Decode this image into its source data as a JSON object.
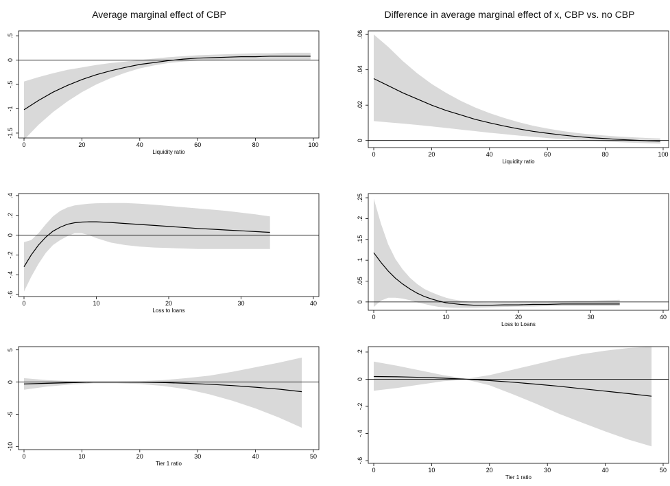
{
  "titles": {
    "left": "Average marginal effect of CBP",
    "right": "Difference in average marginal effect of x, CBP vs. no CBP"
  },
  "colors": {
    "band": "#d9d9d9",
    "line": "#000000",
    "frame": "#000000"
  },
  "chart_data": [
    {
      "type": "line",
      "column": "left",
      "xlabel": "Liquidity ratio",
      "xlim": [
        0,
        100
      ],
      "ylim": [
        -1.6,
        0.6
      ],
      "xticks": [
        0,
        20,
        40,
        60,
        80,
        100
      ],
      "xtick_labels": [
        "0",
        "20",
        "40",
        "60",
        "80",
        "100"
      ],
      "yticks": [
        0.5,
        0,
        -0.5,
        -1,
        -1.5
      ],
      "ytick_labels": [
        ".5",
        "0",
        "-.5",
        "-1",
        "-1.5"
      ],
      "hline": 0,
      "series": [
        {
          "x": [
            0,
            5,
            10,
            15,
            20,
            25,
            30,
            35,
            40,
            45,
            50,
            55,
            60,
            65,
            70,
            75,
            80,
            85,
            90,
            95,
            99
          ],
          "y": [
            -1.02,
            -0.83,
            -0.66,
            -0.52,
            -0.4,
            -0.3,
            -0.22,
            -0.15,
            -0.09,
            -0.05,
            -0.01,
            0.02,
            0.04,
            0.05,
            0.06,
            0.07,
            0.07,
            0.08,
            0.08,
            0.08,
            0.08
          ],
          "lower": [
            -1.64,
            -1.33,
            -1.07,
            -0.85,
            -0.66,
            -0.5,
            -0.37,
            -0.26,
            -0.17,
            -0.11,
            -0.06,
            -0.03,
            -0.01,
            0.0,
            0.01,
            0.01,
            0.01,
            0.01,
            0.01,
            0.01,
            0.01
          ],
          "upper": [
            -0.44,
            -0.35,
            -0.27,
            -0.2,
            -0.15,
            -0.1,
            -0.06,
            -0.03,
            0.0,
            0.03,
            0.06,
            0.08,
            0.1,
            0.11,
            0.12,
            0.13,
            0.14,
            0.14,
            0.15,
            0.15,
            0.15
          ]
        }
      ]
    },
    {
      "type": "line",
      "column": "right",
      "xlabel": "Liquidity ratio",
      "xlim": [
        0,
        100
      ],
      "ylim": [
        -0.004,
        0.062
      ],
      "xticks": [
        0,
        20,
        40,
        60,
        80,
        100
      ],
      "xtick_labels": [
        "0",
        "20",
        "40",
        "60",
        "80",
        "100"
      ],
      "yticks": [
        0.06,
        0.04,
        0.02,
        0
      ],
      "ytick_labels": [
        ".06",
        ".04",
        ".02",
        "0"
      ],
      "hline": 0,
      "series": [
        {
          "x": [
            0,
            5,
            10,
            15,
            20,
            25,
            30,
            35,
            40,
            45,
            50,
            55,
            60,
            65,
            70,
            75,
            80,
            85,
            90,
            95,
            99
          ],
          "y": [
            0.035,
            0.031,
            0.027,
            0.0235,
            0.02,
            0.017,
            0.0145,
            0.012,
            0.01,
            0.0082,
            0.0066,
            0.0052,
            0.0041,
            0.0031,
            0.0023,
            0.0016,
            0.0011,
            0.0006,
            0.0002,
            -0.0002,
            -0.0004
          ],
          "lower": [
            0.011,
            0.0103,
            0.0096,
            0.0088,
            0.008,
            0.0071,
            0.0062,
            0.0053,
            0.0044,
            0.0036,
            0.0028,
            0.0021,
            0.0014,
            0.0008,
            0.0003,
            -0.0002,
            -0.0006,
            -0.001,
            -0.0013,
            -0.0016,
            -0.0018
          ],
          "upper": [
            0.06,
            0.053,
            0.045,
            0.038,
            0.032,
            0.027,
            0.0225,
            0.0187,
            0.0155,
            0.0128,
            0.0104,
            0.0084,
            0.0068,
            0.0054,
            0.0043,
            0.0034,
            0.0028,
            0.0022,
            0.0018,
            0.0014,
            0.0012
          ]
        }
      ]
    },
    {
      "type": "line",
      "column": "left",
      "xlabel": "Loss to loans",
      "xlim": [
        0,
        40
      ],
      "ylim": [
        -0.62,
        0.42
      ],
      "xticks": [
        0,
        10,
        20,
        30,
        40
      ],
      "xtick_labels": [
        "0",
        "10",
        "20",
        "30",
        "40"
      ],
      "yticks": [
        0.4,
        0.2,
        0,
        -0.2,
        -0.4,
        -0.6
      ],
      "ytick_labels": [
        ".4",
        ".2",
        "0",
        "-.2",
        "-.4",
        "-.6"
      ],
      "hline": 0,
      "series": [
        {
          "x": [
            0,
            1,
            2,
            3,
            4,
            5,
            6,
            7,
            8,
            9,
            10,
            12,
            14,
            16,
            18,
            20,
            22,
            24,
            26,
            28,
            30,
            32,
            34
          ],
          "y": [
            -0.32,
            -0.2,
            -0.1,
            -0.02,
            0.04,
            0.08,
            0.11,
            0.125,
            0.132,
            0.135,
            0.135,
            0.128,
            0.118,
            0.108,
            0.098,
            0.088,
            0.078,
            0.068,
            0.06,
            0.052,
            0.044,
            0.036,
            0.028
          ],
          "lower": [
            -0.57,
            -0.42,
            -0.29,
            -0.18,
            -0.1,
            -0.05,
            -0.01,
            0.02,
            0.02,
            0.0,
            -0.03,
            -0.075,
            -0.1,
            -0.115,
            -0.125,
            -0.13,
            -0.135,
            -0.14,
            -0.14,
            -0.14,
            -0.14,
            -0.14,
            -0.14
          ],
          "upper": [
            -0.07,
            -0.05,
            0.02,
            0.11,
            0.19,
            0.245,
            0.28,
            0.3,
            0.31,
            0.318,
            0.322,
            0.325,
            0.325,
            0.318,
            0.308,
            0.295,
            0.282,
            0.27,
            0.258,
            0.245,
            0.228,
            0.21,
            0.19
          ]
        }
      ]
    },
    {
      "type": "line",
      "column": "right",
      "xlabel": "Loss to Loans",
      "xlim": [
        0,
        40
      ],
      "ylim": [
        -0.02,
        0.26
      ],
      "xticks": [
        0,
        10,
        20,
        30,
        40
      ],
      "xtick_labels": [
        "0",
        "10",
        "20",
        "30",
        "40"
      ],
      "yticks": [
        0.25,
        0.2,
        0.15,
        0.1,
        0.05,
        0
      ],
      "ytick_labels": [
        ".25",
        ".2",
        ".15",
        ".1",
        ".05",
        "0"
      ],
      "hline": 0,
      "series": [
        {
          "x": [
            0,
            1,
            2,
            3,
            4,
            5,
            6,
            7,
            8,
            9,
            10,
            11,
            12,
            13,
            14,
            16,
            18,
            20,
            22,
            24,
            26,
            28,
            30,
            32,
            34
          ],
          "y": [
            0.118,
            0.095,
            0.074,
            0.057,
            0.043,
            0.031,
            0.021,
            0.013,
            0.007,
            0.002,
            -0.002,
            -0.004,
            -0.006,
            -0.007,
            -0.008,
            -0.008,
            -0.007,
            -0.007,
            -0.006,
            -0.006,
            -0.005,
            -0.005,
            -0.005,
            -0.005,
            -0.005
          ],
          "lower": [
            -0.012,
            0.003,
            0.01,
            0.01,
            0.008,
            0.004,
            -0.001,
            -0.005,
            -0.009,
            -0.012,
            -0.013,
            -0.014,
            -0.014,
            -0.014,
            -0.014,
            -0.013,
            -0.012,
            -0.011,
            -0.011,
            -0.01,
            -0.01,
            -0.01,
            -0.01,
            -0.01,
            -0.01
          ],
          "upper": [
            0.248,
            0.188,
            0.138,
            0.103,
            0.078,
            0.058,
            0.043,
            0.031,
            0.023,
            0.016,
            0.01,
            0.006,
            0.003,
            0.001,
            0.0,
            -0.001,
            0.0,
            0.001,
            0.001,
            0.001,
            0.002,
            0.003,
            0.003,
            0.004,
            0.005
          ]
        }
      ]
    },
    {
      "type": "line",
      "column": "left",
      "xlabel": "Tier 1 ratio",
      "xlim": [
        0,
        50
      ],
      "ylim": [
        -10.5,
        5.5
      ],
      "xticks": [
        0,
        10,
        20,
        30,
        40,
        50
      ],
      "xtick_labels": [
        "0",
        "10",
        "20",
        "30",
        "40",
        "50"
      ],
      "yticks": [
        5,
        0,
        -5,
        -10
      ],
      "ytick_labels": [
        "5",
        "0",
        "-5",
        "-10"
      ],
      "hline": 0,
      "series": [
        {
          "x": [
            0,
            4,
            8,
            12,
            16,
            20,
            24,
            28,
            32,
            36,
            40,
            44,
            48
          ],
          "y": [
            -0.3,
            -0.2,
            -0.1,
            0.0,
            0.0,
            -0.02,
            -0.08,
            -0.2,
            -0.35,
            -0.55,
            -0.8,
            -1.1,
            -1.5
          ],
          "lower": [
            -1.2,
            -0.7,
            -0.4,
            -0.2,
            -0.2,
            -0.3,
            -0.6,
            -1.1,
            -1.9,
            -2.9,
            -4.1,
            -5.5,
            -7.1
          ],
          "upper": [
            0.6,
            0.3,
            0.15,
            0.1,
            0.1,
            0.15,
            0.3,
            0.6,
            1.0,
            1.6,
            2.3,
            3.0,
            3.8
          ]
        }
      ]
    },
    {
      "type": "line",
      "column": "right",
      "xlabel": "Tier 1 ratio",
      "xlim": [
        0,
        50
      ],
      "ylim": [
        -0.62,
        0.24
      ],
      "xticks": [
        0,
        10,
        20,
        30,
        40,
        50
      ],
      "xtick_labels": [
        "0",
        "10",
        "20",
        "30",
        "40",
        "50"
      ],
      "yticks": [
        0.2,
        0,
        -0.2,
        -0.4,
        -0.6
      ],
      "ytick_labels": [
        ".2",
        "0",
        "-.2",
        "-.4",
        "-.6"
      ],
      "hline": 0,
      "series": [
        {
          "x": [
            0,
            4,
            8,
            12,
            16,
            20,
            24,
            28,
            32,
            36,
            40,
            44,
            48
          ],
          "y": [
            0.02,
            0.018,
            0.014,
            0.008,
            0.0,
            -0.01,
            -0.022,
            -0.036,
            -0.052,
            -0.07,
            -0.088,
            -0.106,
            -0.125
          ],
          "lower": [
            -0.085,
            -0.065,
            -0.04,
            -0.015,
            -0.003,
            -0.045,
            -0.11,
            -0.18,
            -0.255,
            -0.32,
            -0.385,
            -0.445,
            -0.495
          ],
          "upper": [
            0.13,
            0.1,
            0.065,
            0.03,
            0.003,
            0.03,
            0.07,
            0.11,
            0.15,
            0.185,
            0.21,
            0.23,
            0.24
          ]
        }
      ]
    }
  ]
}
